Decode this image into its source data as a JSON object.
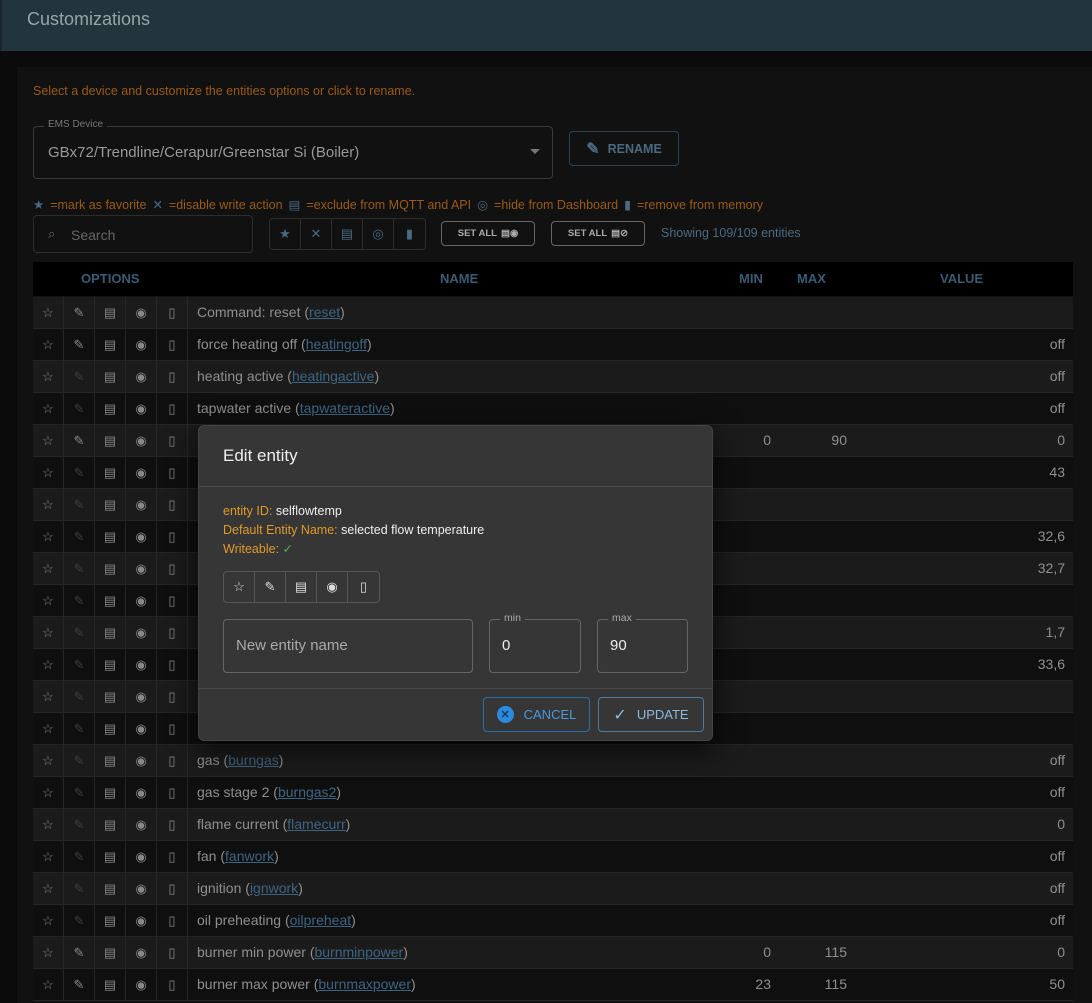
{
  "header": {
    "title": "Customizations"
  },
  "hint": "Select a device and customize the entities options or click to rename.",
  "device": {
    "label": "EMS Device",
    "value": "GBx72/Trendline/Cerapur/Greenstar Si (Boiler)"
  },
  "rename_label": "RENAME",
  "legend": {
    "favorite": "=mark as favorite",
    "readonly": "=disable write action",
    "exclude": "=exclude from MQTT and API",
    "hide": "=hide from Dashboard",
    "remove": "=remove from memory"
  },
  "search": {
    "placeholder": "Search"
  },
  "set_all_1": "SET ALL",
  "set_all_2": "SET ALL",
  "showing": "Showing 109/109 entities",
  "table": {
    "headers": {
      "options": "OPTIONS",
      "name": "NAME",
      "min": "MIN",
      "max": "MAX",
      "value": "VALUE"
    },
    "rows": [
      {
        "name": "Command: reset",
        "id": "reset",
        "writeable": true,
        "min": "",
        "max": "",
        "value": ""
      },
      {
        "name": "force heating off",
        "id": "heatingoff",
        "writeable": true,
        "min": "",
        "max": "",
        "value": "off"
      },
      {
        "name": "heating active",
        "id": "heatingactive",
        "writeable": false,
        "min": "",
        "max": "",
        "value": "off"
      },
      {
        "name": "tapwater active",
        "id": "tapwateractive",
        "writeable": false,
        "min": "",
        "max": "",
        "value": "off"
      },
      {
        "name": "",
        "id": "",
        "writeable": true,
        "min": "0",
        "max": "90",
        "value": "0"
      },
      {
        "name": "",
        "id": "",
        "writeable": false,
        "min": "",
        "max": "",
        "value": "43"
      },
      {
        "name": "",
        "id": "",
        "writeable": false,
        "min": "",
        "max": "",
        "value": ""
      },
      {
        "name": "",
        "id": "",
        "writeable": false,
        "min": "",
        "max": "",
        "value": "32,6"
      },
      {
        "name": "",
        "id": "",
        "writeable": false,
        "min": "",
        "max": "",
        "value": "32,7"
      },
      {
        "name": "",
        "id": "",
        "writeable": false,
        "min": "",
        "max": "",
        "value": ""
      },
      {
        "name": "",
        "id": "",
        "writeable": false,
        "min": "",
        "max": "",
        "value": "1,7"
      },
      {
        "name": "",
        "id": "",
        "writeable": false,
        "min": "",
        "max": "",
        "value": "33,6"
      },
      {
        "name": "",
        "id": "",
        "writeable": false,
        "min": "",
        "max": "",
        "value": ""
      },
      {
        "name": "",
        "id": "",
        "writeable": false,
        "min": "",
        "max": "",
        "value": ""
      },
      {
        "name": "gas",
        "id": "burngas",
        "writeable": false,
        "min": "",
        "max": "",
        "value": "off"
      },
      {
        "name": "gas stage 2",
        "id": "burngas2",
        "writeable": false,
        "min": "",
        "max": "",
        "value": "off"
      },
      {
        "name": "flame current",
        "id": "flamecurr",
        "writeable": false,
        "min": "",
        "max": "",
        "value": "0"
      },
      {
        "name": "fan",
        "id": "fanwork",
        "writeable": false,
        "min": "",
        "max": "",
        "value": "off"
      },
      {
        "name": "ignition",
        "id": "ignwork",
        "writeable": false,
        "min": "",
        "max": "",
        "value": "off"
      },
      {
        "name": "oil preheating",
        "id": "oilpreheat",
        "writeable": false,
        "min": "",
        "max": "",
        "value": "off"
      },
      {
        "name": "burner min power",
        "id": "burnminpower",
        "writeable": true,
        "min": "0",
        "max": "115",
        "value": "0"
      },
      {
        "name": "burner max power",
        "id": "burnmaxpower",
        "writeable": true,
        "min": "23",
        "max": "115",
        "value": "50"
      }
    ]
  },
  "dialog": {
    "title": "Edit entity",
    "entity_id_label": "entity ID:",
    "entity_id": "selflowtemp",
    "default_name_label": "Default Entity Name:",
    "default_name": "selected flow temperature",
    "writeable_label": "Writeable:",
    "writeable_mark": "✓",
    "name_placeholder": "New entity name",
    "min_label": "min",
    "min_value": "0",
    "max_label": "max",
    "max_value": "90",
    "cancel": "CANCEL",
    "update": "UPDATE"
  },
  "colors": {
    "accent": "#4a9ad8",
    "warning": "#e09a2a",
    "header": "#22343c"
  }
}
